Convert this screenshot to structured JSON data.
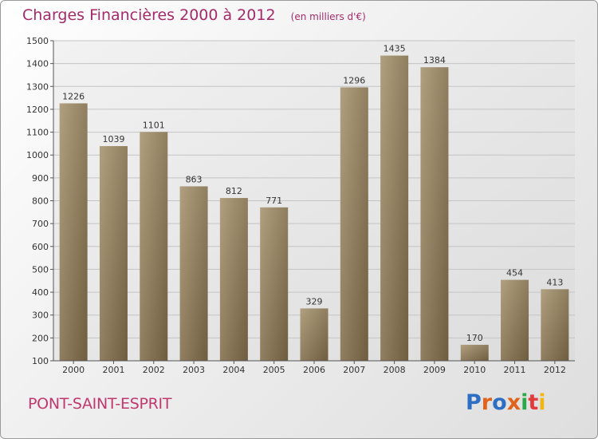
{
  "chart_data": {
    "type": "bar",
    "title": "Charges Financières 2000 à 2012",
    "subtitle": "(en milliers d'€)",
    "categories": [
      "2000",
      "2001",
      "2002",
      "2003",
      "2004",
      "2005",
      "2006",
      "2007",
      "2008",
      "2009",
      "2010",
      "2011",
      "2012"
    ],
    "values": [
      1226,
      1039,
      1101,
      863,
      812,
      771,
      329,
      1296,
      1435,
      1384,
      170,
      454,
      413
    ],
    "ylim": [
      100,
      1500
    ],
    "yticks": [
      100,
      200,
      300,
      400,
      500,
      600,
      700,
      800,
      900,
      1000,
      1100,
      1200,
      1300,
      1400,
      1500
    ],
    "xlabel": "",
    "ylabel": "",
    "grid": true,
    "bar_color": "#8a7555"
  },
  "footer": {
    "city": "PONT-SAINT-ESPRIT",
    "logo": "Proxiti",
    "logo_colors": [
      "#2e6fc4",
      "#e0621b",
      "#2e6fc4",
      "#e0621b",
      "#2aa84a",
      "#e03c3c",
      "#f1b514"
    ]
  }
}
